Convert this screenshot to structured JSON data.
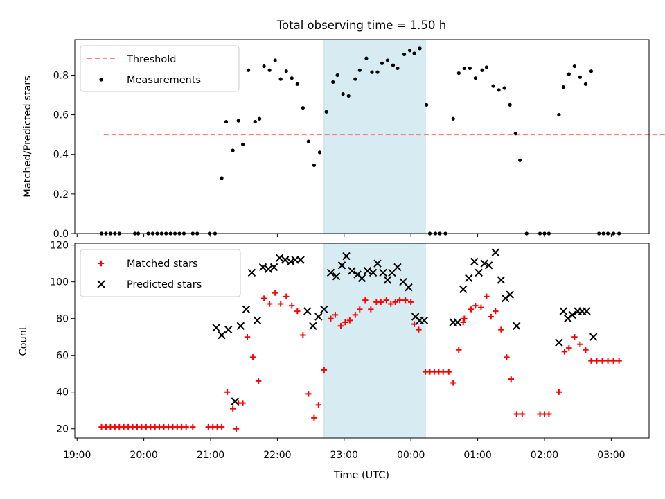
{
  "chart_data": [
    {
      "type": "scatter",
      "title": "Total observing time = 1.50 h",
      "xlabel": "",
      "ylabel": "Matched/Predicted stars",
      "xlim": [
        18.9667,
        27.5667
      ],
      "ylim": [
        0,
        0.98
      ],
      "yticks": [
        0.0,
        0.2,
        0.4,
        0.6,
        0.8
      ],
      "ytick_labels": [
        "0.0",
        "0.2",
        "0.4",
        "0.6",
        "0.8"
      ],
      "grid": false,
      "legend_position": "upper-left",
      "shaded_span": {
        "x": [
          22.7,
          24.2167
        ],
        "color": "#add8e6"
      },
      "threshold": {
        "name": "Threshold",
        "y": 0.5,
        "x": [
          19.4,
          28.1667
        ],
        "color": "#ff7f7f",
        "style": "dashed"
      },
      "series": [
        {
          "name": "Measurements",
          "marker": "dot",
          "color": "#000000",
          "points": [
            [
              19.3667,
              0
            ],
            [
              19.4333,
              0
            ],
            [
              19.5,
              0
            ],
            [
              19.5667,
              0
            ],
            [
              19.6333,
              0
            ],
            [
              19.8667,
              0
            ],
            [
              19.9167,
              0
            ],
            [
              20.0667,
              0
            ],
            [
              20.1333,
              0
            ],
            [
              20.2,
              0
            ],
            [
              20.2667,
              0
            ],
            [
              20.3333,
              0
            ],
            [
              20.4,
              0
            ],
            [
              20.4667,
              0
            ],
            [
              20.5333,
              0
            ],
            [
              20.6,
              0
            ],
            [
              20.7333,
              0
            ],
            [
              20.8,
              0
            ],
            [
              20.9833,
              0
            ],
            [
              21.0667,
              0
            ],
            [
              21.1667,
              0.28
            ],
            [
              21.2333,
              0.565
            ],
            [
              21.3333,
              0.42
            ],
            [
              21.4167,
              0.57
            ],
            [
              21.4833,
              0.45
            ],
            [
              21.5667,
              0.825
            ],
            [
              21.6667,
              0.565
            ],
            [
              21.7333,
              0.58
            ],
            [
              21.8,
              0.845
            ],
            [
              21.8833,
              0.825
            ],
            [
              21.9667,
              0.875
            ],
            [
              22.05,
              0.78
            ],
            [
              22.1333,
              0.82
            ],
            [
              22.2167,
              0.785
            ],
            [
              22.3,
              0.755
            ],
            [
              22.3833,
              0.635
            ],
            [
              22.4667,
              0.465
            ],
            [
              22.55,
              0.345
            ],
            [
              22.6333,
              0.41
            ],
            [
              22.7333,
              0.615
            ],
            [
              22.8333,
              0.765
            ],
            [
              22.9,
              0.8
            ],
            [
              22.9833,
              0.705
            ],
            [
              23.0667,
              0.695
            ],
            [
              23.1667,
              0.78
            ],
            [
              23.2333,
              0.825
            ],
            [
              23.3333,
              0.885
            ],
            [
              23.4167,
              0.815
            ],
            [
              23.5,
              0.815
            ],
            [
              23.5667,
              0.86
            ],
            [
              23.65,
              0.875
            ],
            [
              23.7333,
              0.85
            ],
            [
              23.8,
              0.835
            ],
            [
              23.9,
              0.905
            ],
            [
              23.9833,
              0.925
            ],
            [
              24.05,
              0.91
            ],
            [
              24.1333,
              0.935
            ],
            [
              24.2333,
              0.65
            ],
            [
              24.2833,
              0
            ],
            [
              24.3667,
              0
            ],
            [
              24.4333,
              0
            ],
            [
              24.5167,
              0
            ],
            [
              24.6333,
              0.58
            ],
            [
              24.7167,
              0.81
            ],
            [
              24.8,
              0.835
            ],
            [
              24.8833,
              0.835
            ],
            [
              24.9667,
              0.785
            ],
            [
              25.0667,
              0.825
            ],
            [
              25.1333,
              0.84
            ],
            [
              25.2333,
              0.745
            ],
            [
              25.3167,
              0.725
            ],
            [
              25.4,
              0.735
            ],
            [
              25.4833,
              0.65
            ],
            [
              25.5667,
              0.505
            ],
            [
              25.6333,
              0.37
            ],
            [
              25.7333,
              0
            ],
            [
              25.9333,
              0
            ],
            [
              26.0,
              0
            ],
            [
              26.0667,
              0
            ],
            [
              26.2167,
              0.6
            ],
            [
              26.2833,
              0.74
            ],
            [
              26.3667,
              0.805
            ],
            [
              26.45,
              0.845
            ],
            [
              26.5333,
              0.79
            ],
            [
              26.6167,
              0.755
            ],
            [
              26.7,
              0.82
            ],
            [
              26.8167,
              0
            ],
            [
              26.8833,
              0
            ],
            [
              26.95,
              0
            ],
            [
              27.0333,
              0
            ],
            [
              27.1167,
              0
            ]
          ]
        }
      ]
    },
    {
      "type": "scatter",
      "title": "",
      "xlabel": "Time (UTC)",
      "ylabel": "Count",
      "xlim": [
        18.9667,
        27.5667
      ],
      "ylim": [
        15,
        121
      ],
      "yticks": [
        20,
        40,
        60,
        80,
        100,
        120
      ],
      "ytick_labels": [
        "20",
        "40",
        "60",
        "80",
        "100",
        "120"
      ],
      "xticks": [
        19,
        20,
        21,
        22,
        23,
        24,
        25,
        26,
        27
      ],
      "xtick_labels": [
        "19:00",
        "20:00",
        "21:00",
        "22:00",
        "23:00",
        "00:00",
        "01:00",
        "02:00",
        "03:00"
      ],
      "grid": false,
      "legend_position": "upper-left",
      "shaded_span": {
        "x": [
          22.7,
          24.2167
        ],
        "color": "#add8e6"
      },
      "series": [
        {
          "name": "Matched stars",
          "marker": "plus",
          "color": "#ff0000",
          "points": [
            [
              19.3667,
              21
            ],
            [
              19.4333,
              21
            ],
            [
              19.5,
              21
            ],
            [
              19.5667,
              21
            ],
            [
              19.6333,
              21
            ],
            [
              19.7,
              21
            ],
            [
              19.7667,
              21
            ],
            [
              19.8333,
              21
            ],
            [
              19.9,
              21
            ],
            [
              19.9667,
              21
            ],
            [
              20.0333,
              21
            ],
            [
              20.1,
              21
            ],
            [
              20.1667,
              21
            ],
            [
              20.2333,
              21
            ],
            [
              20.3,
              21
            ],
            [
              20.3667,
              21
            ],
            [
              20.4333,
              21
            ],
            [
              20.5,
              21
            ],
            [
              20.5667,
              21
            ],
            [
              20.6333,
              21
            ],
            [
              20.7333,
              21
            ],
            [
              20.9667,
              21
            ],
            [
              21.0333,
              21
            ],
            [
              21.1,
              21
            ],
            [
              21.1667,
              21
            ],
            [
              21.25,
              40
            ],
            [
              21.3333,
              31
            ],
            [
              21.3833,
              20
            ],
            [
              21.4167,
              34
            ],
            [
              21.4833,
              34
            ],
            [
              21.55,
              70
            ],
            [
              21.6333,
              59
            ],
            [
              21.7167,
              46
            ],
            [
              21.8,
              91
            ],
            [
              21.8833,
              88
            ],
            [
              21.9667,
              94
            ],
            [
              22.05,
              88
            ],
            [
              22.1333,
              92
            ],
            [
              22.2167,
              87
            ],
            [
              22.3,
              84
            ],
            [
              22.3833,
              71
            ],
            [
              22.4667,
              39
            ],
            [
              22.55,
              26
            ],
            [
              22.6167,
              33
            ],
            [
              22.7,
              52
            ],
            [
              22.8,
              80
            ],
            [
              22.8667,
              82
            ],
            [
              22.95,
              76
            ],
            [
              23.0167,
              78
            ],
            [
              23.0833,
              79
            ],
            [
              23.1667,
              82
            ],
            [
              23.2333,
              85
            ],
            [
              23.3167,
              90
            ],
            [
              23.4,
              85
            ],
            [
              23.4833,
              89
            ],
            [
              23.55,
              89
            ],
            [
              23.6333,
              90
            ],
            [
              23.7,
              88
            ],
            [
              23.7667,
              89
            ],
            [
              23.8333,
              90
            ],
            [
              23.9167,
              90
            ],
            [
              24.0,
              89
            ],
            [
              24.05,
              77
            ],
            [
              24.1167,
              74
            ],
            [
              24.2167,
              51
            ],
            [
              24.2833,
              51
            ],
            [
              24.35,
              51
            ],
            [
              24.4167,
              51
            ],
            [
              24.4833,
              51
            ],
            [
              24.5667,
              51
            ],
            [
              24.6333,
              45
            ],
            [
              24.7167,
              63
            ],
            [
              24.7833,
              78
            ],
            [
              24.8,
              80
            ],
            [
              24.9,
              85
            ],
            [
              24.9667,
              87
            ],
            [
              25.05,
              86
            ],
            [
              25.1333,
              92
            ],
            [
              25.2,
              81
            ],
            [
              25.2667,
              84
            ],
            [
              25.35,
              74
            ],
            [
              25.4333,
              59
            ],
            [
              25.5,
              47
            ],
            [
              25.5833,
              28
            ],
            [
              25.6667,
              28
            ],
            [
              25.9333,
              28
            ],
            [
              26.0,
              28
            ],
            [
              26.0667,
              28
            ],
            [
              26.2167,
              40
            ],
            [
              26.3,
              62
            ],
            [
              26.3667,
              64
            ],
            [
              26.45,
              70
            ],
            [
              26.5333,
              66
            ],
            [
              26.6167,
              63
            ],
            [
              26.7,
              57
            ],
            [
              26.7833,
              57
            ],
            [
              26.8667,
              57
            ],
            [
              26.95,
              57
            ],
            [
              27.0333,
              57
            ],
            [
              27.1167,
              57
            ]
          ]
        },
        {
          "name": "Predicted stars",
          "marker": "x",
          "color": "#000000",
          "points": [
            [
              21.0833,
              75
            ],
            [
              21.1667,
              71
            ],
            [
              21.2667,
              74
            ],
            [
              21.3667,
              35
            ],
            [
              21.45,
              76
            ],
            [
              21.5333,
              85
            ],
            [
              21.6167,
              105
            ],
            [
              21.7,
              79
            ],
            [
              21.7833,
              108
            ],
            [
              21.8667,
              107
            ],
            [
              21.95,
              108
            ],
            [
              22.0333,
              113
            ],
            [
              22.1167,
              112
            ],
            [
              22.2,
              111
            ],
            [
              22.2667,
              112
            ],
            [
              22.35,
              112
            ],
            [
              22.45,
              84
            ],
            [
              22.5333,
              76
            ],
            [
              22.6167,
              81
            ],
            [
              22.7,
              85
            ],
            [
              22.8,
              105
            ],
            [
              22.8833,
              103
            ],
            [
              22.9667,
              109
            ],
            [
              23.0333,
              114
            ],
            [
              23.1167,
              106
            ],
            [
              23.2,
              104
            ],
            [
              23.2667,
              102
            ],
            [
              23.35,
              106
            ],
            [
              23.4333,
              105
            ],
            [
              23.5,
              110
            ],
            [
              23.5833,
              105
            ],
            [
              23.65,
              101
            ],
            [
              23.7167,
              105
            ],
            [
              23.8,
              108
            ],
            [
              23.8833,
              100
            ],
            [
              23.9667,
              97
            ],
            [
              24.0667,
              81
            ],
            [
              24.1333,
              79
            ],
            [
              24.2,
              79
            ],
            [
              24.6333,
              78
            ],
            [
              24.7,
              78
            ],
            [
              24.7833,
              96
            ],
            [
              24.8667,
              102
            ],
            [
              24.95,
              111
            ],
            [
              25.0167,
              105
            ],
            [
              25.1,
              110
            ],
            [
              25.1667,
              109
            ],
            [
              25.2667,
              116
            ],
            [
              25.35,
              101
            ],
            [
              25.4167,
              91
            ],
            [
              25.4833,
              93
            ],
            [
              25.5833,
              76
            ],
            [
              26.2167,
              67
            ],
            [
              26.2833,
              84
            ],
            [
              26.35,
              80
            ],
            [
              26.4167,
              82
            ],
            [
              26.5,
              84
            ],
            [
              26.5667,
              84
            ],
            [
              26.6333,
              84
            ],
            [
              26.7333,
              70
            ]
          ]
        }
      ]
    }
  ]
}
